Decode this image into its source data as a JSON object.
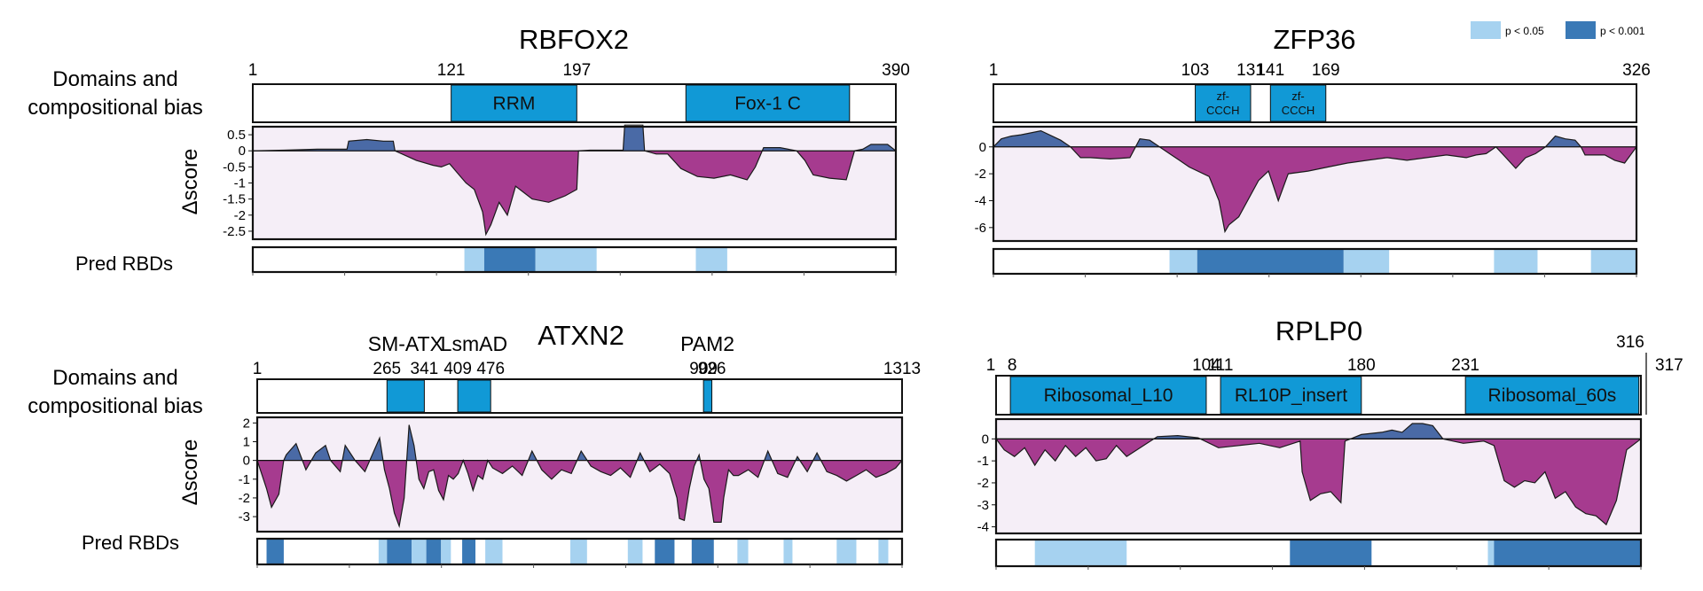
{
  "legend": {
    "items": [
      {
        "label": "p < 0.05",
        "color": "#a6d2f0"
      },
      {
        "label": "p < 0.001",
        "color": "#3a79b6"
      }
    ]
  },
  "labels": {
    "domains_line1": "Domains and",
    "domains_line2": "compositional bias",
    "dscore": "Δscore",
    "pred_rbds": "Pred RBDs"
  },
  "colors": {
    "domain_fill": "#1199d6",
    "positive_fill": "#4a6aa6",
    "negative_fill": "#a63b8f",
    "plot_bg": "#f5eef7",
    "rbd_light": "#a6d2f0",
    "rbd_dark": "#3a79b6"
  },
  "chart_data": [
    {
      "type": "area",
      "title": "RBFOX2",
      "length": 390,
      "position_ticks": [
        1,
        121,
        197,
        390
      ],
      "domains": [
        {
          "label": "RRM",
          "start": 121,
          "end": 197
        },
        {
          "label": "Fox-1 C",
          "start": 263,
          "end": 362
        }
      ],
      "ylabel": "Δscore",
      "yticks": [
        0.5,
        0,
        -0.5,
        -1,
        -1.5,
        -2,
        -2.5
      ],
      "ylim": [
        -2.75,
        0.75
      ],
      "x": [
        1,
        20,
        40,
        58,
        59,
        70,
        80,
        86,
        87,
        100,
        110,
        115,
        120,
        125,
        130,
        135,
        140,
        142,
        145,
        150,
        155,
        160,
        165,
        170,
        180,
        190,
        197,
        198,
        205,
        215,
        225,
        226,
        227,
        237,
        238,
        245,
        252,
        260,
        270,
        280,
        290,
        300,
        305,
        310,
        320,
        330,
        335,
        340,
        350,
        360,
        365,
        370,
        375,
        385,
        390
      ],
      "y": [
        0,
        0.02,
        0.05,
        0.05,
        0.3,
        0.35,
        0.3,
        0.3,
        0,
        -0.3,
        -0.45,
        -0.5,
        -0.4,
        -0.7,
        -1.0,
        -1.2,
        -1.9,
        -2.6,
        -2.3,
        -1.6,
        -2.0,
        -1.1,
        -1.3,
        -1.5,
        -1.6,
        -1.4,
        -1.2,
        0,
        0.02,
        0.02,
        0.02,
        0.8,
        0.8,
        0.8,
        0,
        -0.1,
        -0.1,
        -0.55,
        -0.8,
        -0.85,
        -0.75,
        -0.9,
        -0.5,
        0.1,
        0.1,
        0,
        -0.3,
        -0.75,
        -0.85,
        -0.9,
        0,
        0.05,
        0.2,
        0.2,
        0
      ],
      "pred_rbds": [
        {
          "start": 129,
          "end": 141,
          "level": "p < 0.05"
        },
        {
          "start": 141,
          "end": 172,
          "level": "p < 0.001"
        },
        {
          "start": 172,
          "end": 209,
          "level": "p < 0.05"
        },
        {
          "start": 269,
          "end": 288,
          "level": "p < 0.05"
        }
      ]
    },
    {
      "type": "area",
      "title": "ZFP36",
      "length": 326,
      "position_ticks": [
        1,
        103,
        131,
        141,
        169,
        326
      ],
      "domains": [
        {
          "label": "zf-CCCH",
          "start": 103,
          "end": 131
        },
        {
          "label": "zf-CCCH",
          "start": 141,
          "end": 169
        }
      ],
      "ylabel": "Δscore",
      "yticks": [
        0,
        -2,
        -4,
        -6
      ],
      "ylim": [
        -7,
        1.5
      ],
      "x": [
        1,
        5,
        10,
        15,
        25,
        35,
        40,
        45,
        50,
        60,
        70,
        75,
        80,
        90,
        95,
        100,
        110,
        115,
        118,
        120,
        125,
        135,
        140,
        145,
        150,
        160,
        170,
        180,
        190,
        200,
        210,
        220,
        230,
        240,
        245,
        250,
        255,
        260,
        265,
        270,
        275,
        280,
        285,
        290,
        295,
        298,
        300,
        310,
        315,
        320,
        326
      ],
      "y": [
        0,
        0.6,
        0.8,
        0.9,
        1.2,
        0.5,
        0,
        -0.8,
        -0.8,
        -0.9,
        -0.8,
        0.6,
        0.5,
        -0.5,
        -1.0,
        -1.5,
        -2.2,
        -4.0,
        -6.3,
        -5.8,
        -5.2,
        -2.5,
        -1.8,
        -4.0,
        -2.0,
        -1.8,
        -1.5,
        -1.2,
        -1.0,
        -0.8,
        -1.0,
        -0.8,
        -0.6,
        -0.8,
        -0.6,
        -0.5,
        0,
        -0.8,
        -1.6,
        -0.8,
        -0.5,
        0,
        0.8,
        0.6,
        0.5,
        0,
        -0.6,
        -0.6,
        -1.0,
        -1.2,
        0
      ],
      "pred_rbds": [
        {
          "start": 90,
          "end": 104,
          "level": "p < 0.05"
        },
        {
          "start": 104,
          "end": 178,
          "level": "p < 0.001"
        },
        {
          "start": 178,
          "end": 201,
          "level": "p < 0.05"
        },
        {
          "start": 254,
          "end": 276,
          "level": "p < 0.05"
        },
        {
          "start": 303,
          "end": 326,
          "level": "p < 0.05"
        }
      ]
    },
    {
      "type": "area",
      "title": "ATXN2",
      "length": 1313,
      "position_ticks": [
        1,
        265,
        341,
        409,
        476,
        909,
        926,
        1313
      ],
      "domain_annotations": [
        {
          "label": "SM-ATX",
          "position": 303
        },
        {
          "label": "LsmAD",
          "position": 442
        },
        {
          "label": "PAM2",
          "position": 917
        }
      ],
      "domains": [
        {
          "label": "",
          "start": 265,
          "end": 341
        },
        {
          "label": "",
          "start": 409,
          "end": 476
        },
        {
          "label": "",
          "start": 909,
          "end": 926
        }
      ],
      "ylabel": "Δscore",
      "yticks": [
        2,
        1,
        0,
        -1,
        -2,
        -3
      ],
      "ylim": [
        -3.8,
        2.3
      ],
      "x": [
        1,
        20,
        30,
        45,
        55,
        60,
        80,
        100,
        120,
        140,
        150,
        170,
        180,
        200,
        220,
        240,
        250,
        260,
        270,
        280,
        290,
        300,
        310,
        320,
        330,
        340,
        350,
        360,
        370,
        380,
        390,
        400,
        410,
        420,
        430,
        440,
        450,
        460,
        470,
        480,
        500,
        520,
        540,
        560,
        580,
        600,
        620,
        640,
        660,
        680,
        700,
        720,
        740,
        760,
        780,
        800,
        820,
        840,
        855,
        860,
        870,
        880,
        890,
        900,
        910,
        920,
        930,
        945,
        950,
        960,
        970,
        980,
        1000,
        1020,
        1040,
        1060,
        1080,
        1100,
        1120,
        1140,
        1160,
        1180,
        1200,
        1220,
        1240,
        1260,
        1280,
        1300,
        1313
      ],
      "y": [
        0,
        -1.5,
        -2.5,
        -1.8,
        0,
        0.3,
        0.9,
        -0.5,
        0.4,
        0.8,
        0,
        -0.6,
        0.8,
        0,
        -0.6,
        0.6,
        1.2,
        -0.5,
        -1.5,
        -2.8,
        -3.5,
        -2.0,
        1.9,
        0.8,
        -1.0,
        -1.5,
        -0.6,
        -0.5,
        -1.6,
        -2.1,
        -0.8,
        -1.0,
        -0.7,
        0,
        -0.7,
        -1.6,
        -0.8,
        -1.0,
        0,
        -0.4,
        -0.7,
        -0.3,
        -0.8,
        0.5,
        -0.5,
        -1.0,
        -0.5,
        -0.7,
        0.5,
        -0.3,
        -0.6,
        -0.8,
        -0.4,
        -0.9,
        0.4,
        -0.6,
        -0.2,
        -0.7,
        -2.0,
        -3.1,
        -3.2,
        -1.5,
        -0.3,
        0.3,
        -1.0,
        -1.5,
        -3.3,
        -3.3,
        -2.0,
        -0.5,
        -0.8,
        -0.8,
        -0.5,
        -0.9,
        0.5,
        -0.7,
        -0.9,
        0.2,
        -0.6,
        0.4,
        -0.6,
        -0.8,
        -1.1,
        -0.8,
        -0.5,
        -0.9,
        -0.7,
        -0.4,
        0
      ],
      "pred_rbds": [
        {
          "start": 20,
          "end": 55,
          "level": "p < 0.001"
        },
        {
          "start": 248,
          "end": 265,
          "level": "p < 0.05"
        },
        {
          "start": 265,
          "end": 315,
          "level": "p < 0.001"
        },
        {
          "start": 315,
          "end": 345,
          "level": "p < 0.05"
        },
        {
          "start": 345,
          "end": 375,
          "level": "p < 0.001"
        },
        {
          "start": 375,
          "end": 395,
          "level": "p < 0.05"
        },
        {
          "start": 418,
          "end": 445,
          "level": "p < 0.001"
        },
        {
          "start": 465,
          "end": 500,
          "level": "p < 0.05"
        },
        {
          "start": 638,
          "end": 672,
          "level": "p < 0.05"
        },
        {
          "start": 755,
          "end": 785,
          "level": "p < 0.05"
        },
        {
          "start": 810,
          "end": 850,
          "level": "p < 0.001"
        },
        {
          "start": 885,
          "end": 930,
          "level": "p < 0.001"
        },
        {
          "start": 978,
          "end": 1000,
          "level": "p < 0.05"
        },
        {
          "start": 1072,
          "end": 1090,
          "level": "p < 0.05"
        },
        {
          "start": 1180,
          "end": 1220,
          "level": "p < 0.05"
        },
        {
          "start": 1265,
          "end": 1285,
          "level": "p < 0.05"
        }
      ]
    },
    {
      "type": "area",
      "title": "RPLP0",
      "length": 317,
      "position_ticks": [
        1,
        8,
        104,
        111,
        180,
        231,
        316,
        317
      ],
      "domains": [
        {
          "label": "Ribosomal_L10",
          "start": 8,
          "end": 104
        },
        {
          "label": "RL10P_insert",
          "start": 111,
          "end": 180
        },
        {
          "label": "Ribosomal_60s",
          "start": 231,
          "end": 316
        }
      ],
      "ylabel": "Δscore",
      "yticks": [
        0,
        -1,
        -2,
        -3,
        -4
      ],
      "ylim": [
        -4.3,
        0.9
      ],
      "x": [
        1,
        5,
        10,
        15,
        20,
        25,
        30,
        35,
        40,
        45,
        50,
        55,
        60,
        65,
        70,
        75,
        80,
        90,
        100,
        110,
        120,
        130,
        140,
        150,
        151,
        155,
        160,
        165,
        170,
        172,
        180,
        190,
        195,
        200,
        205,
        210,
        215,
        220,
        230,
        240,
        245,
        250,
        255,
        260,
        265,
        270,
        275,
        280,
        285,
        290,
        295,
        300,
        305,
        310,
        317
      ],
      "y": [
        0,
        -0.5,
        -0.8,
        -0.4,
        -1.2,
        -0.5,
        -1.0,
        -0.3,
        -0.8,
        -0.4,
        -1.0,
        -0.9,
        -0.3,
        -0.8,
        -0.5,
        -0.2,
        0.1,
        0.15,
        0.05,
        -0.4,
        -0.3,
        -0.2,
        -0.4,
        -0.1,
        -1.5,
        -2.8,
        -2.5,
        -2.4,
        -2.9,
        -0.1,
        0.2,
        0.3,
        0.4,
        0.3,
        0.7,
        0.7,
        0.6,
        0,
        -0.2,
        -0.1,
        -0.3,
        -1.9,
        -2.2,
        -1.9,
        -2.0,
        -1.5,
        -2.7,
        -2.4,
        -3.1,
        -3.4,
        -3.5,
        -3.9,
        -2.8,
        -0.5,
        0
      ],
      "pred_rbds": [
        {
          "start": 20,
          "end": 65,
          "level": "p < 0.05"
        },
        {
          "start": 145,
          "end": 185,
          "level": "p < 0.001"
        },
        {
          "start": 242,
          "end": 245,
          "level": "p < 0.05"
        },
        {
          "start": 245,
          "end": 317,
          "level": "p < 0.001"
        }
      ]
    }
  ]
}
